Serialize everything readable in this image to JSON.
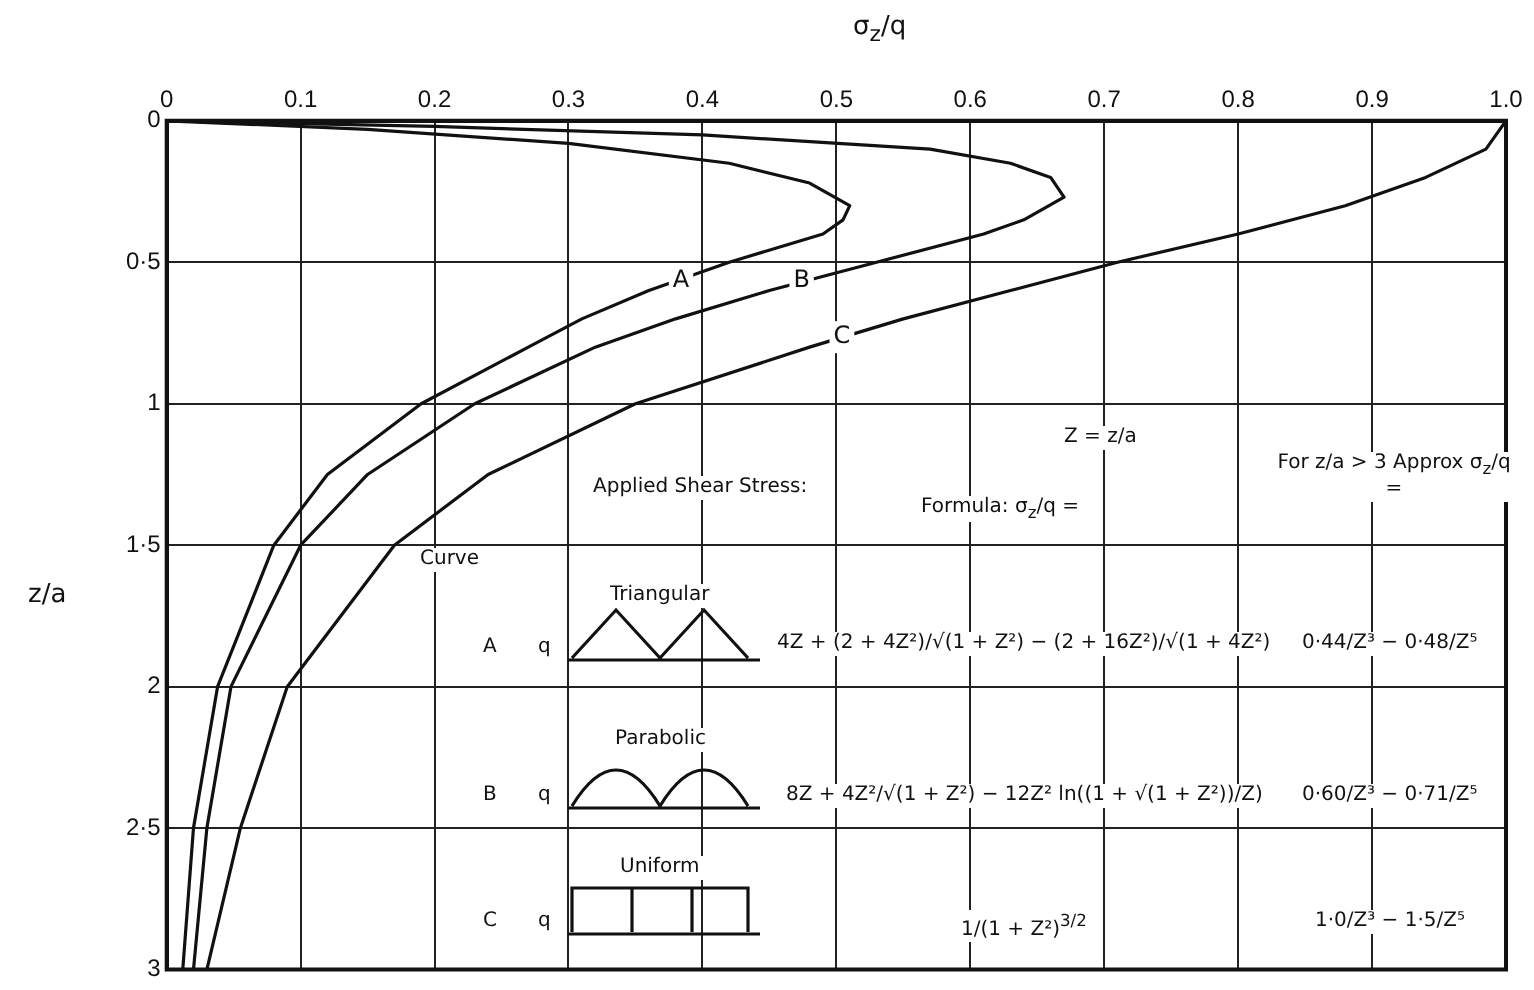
{
  "chart_data": {
    "type": "line",
    "xlabel": "σ$_{z}$/q",
    "ylabel": "z/a",
    "xlim": [
      0,
      1
    ],
    "xticks": [
      0,
      0.1,
      0.2,
      0.3,
      0.4,
      0.5,
      0.6,
      0.7,
      0.8,
      0.9,
      {
        "value": 1,
        "label": "1.0"
      }
    ],
    "ylim": [
      3,
      0
    ],
    "yticks": [
      0,
      {
        "value": 0.5,
        "label": "0·5"
      },
      1,
      {
        "value": 1.5,
        "label": "1·5"
      },
      2,
      {
        "value": 2.5,
        "label": "2·5"
      },
      3
    ],
    "grid": true,
    "legend": false,
    "marker": "none",
    "line_style": "solid",
    "series": [
      {
        "name": "A",
        "color": "#111111",
        "values": [
          0,
          0.03,
          0.08,
          0.15,
          0.22,
          0.3,
          0.35,
          0.4,
          0.5,
          0.6,
          0.7,
          0.8,
          1.0,
          1.25,
          1.5,
          2,
          2.5,
          3
        ],
        "x": [
          0,
          0.15,
          0.3,
          0.42,
          0.48,
          0.51,
          0.505,
          0.49,
          0.42,
          0.36,
          0.31,
          0.27,
          0.19,
          0.12,
          0.08,
          0.038,
          0.02,
          0.012
        ]
      },
      {
        "name": "B",
        "color": "#111111",
        "values": [
          0,
          0.02,
          0.05,
          0.1,
          0.15,
          0.2,
          0.27,
          0.35,
          0.4,
          0.5,
          0.6,
          0.7,
          0.8,
          1.0,
          1.25,
          1.5,
          2,
          2.5,
          3
        ],
        "x": [
          0,
          0.2,
          0.4,
          0.57,
          0.63,
          0.66,
          0.67,
          0.64,
          0.61,
          0.53,
          0.45,
          0.38,
          0.32,
          0.23,
          0.15,
          0.1,
          0.048,
          0.03,
          0.02
        ]
      },
      {
        "name": "C",
        "color": "#111111",
        "values": [
          0,
          0.1,
          0.2,
          0.3,
          0.4,
          0.5,
          0.6,
          0.7,
          0.8,
          1.0,
          1.25,
          1.5,
          2,
          2.5,
          3
        ],
        "x": [
          1,
          0.985,
          0.94,
          0.88,
          0.8,
          0.71,
          0.63,
          0.55,
          0.48,
          0.35,
          0.24,
          0.17,
          0.09,
          0.055,
          0.03
        ]
      }
    ],
    "annotations": [
      "Z = z/a",
      "For z/a > 3 Approx σ$_{z}$/q =",
      "Applied Shear Stress:",
      "Formula: σ$_{z}$/q =",
      "Curve",
      "A",
      "Triangular",
      "4Z + (2 + 4Z²)/√(1 + Z²) − (2 + 16Z²)/√(1 + 4Z²)",
      "0·44/Z³ − 0·48/Z⁵",
      "B",
      "Parabolic",
      "8Z + 4Z²/√(1 + Z²) − 12Z² ln((1 + √(1 + Z²))/Z)",
      "0·60/Z³ − 0·71/Z⁵",
      "C",
      "Uniform",
      "1/(1 + Z²)$^{3/2}$",
      "1·0/Z³ − 1·5/Z⁵",
      "q",
      "q",
      "q"
    ]
  }
}
